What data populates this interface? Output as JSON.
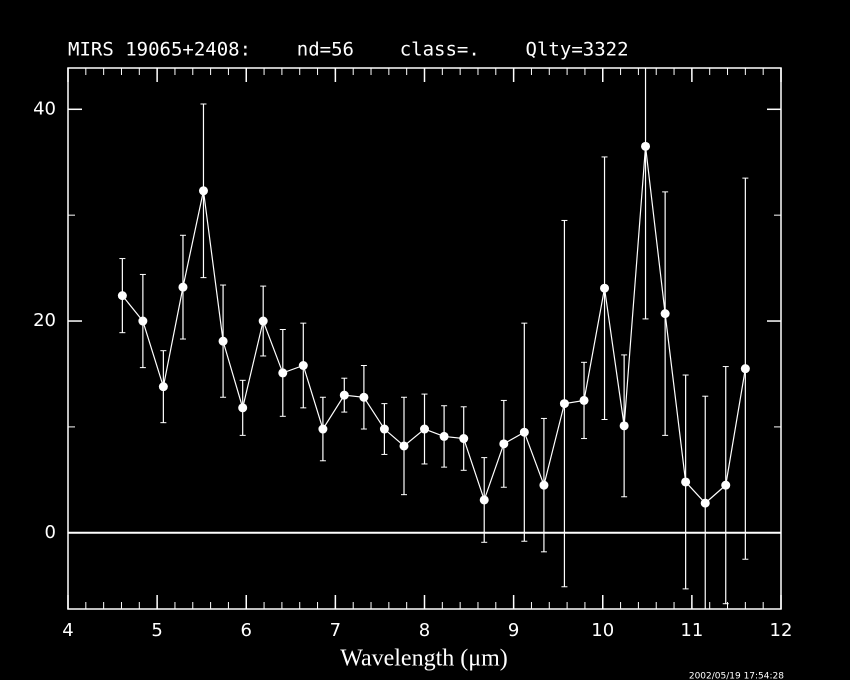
{
  "chart_data": {
    "type": "errorbar-line",
    "title": "MIRS 19065+2408:    nd=56    class=.    Qlty=3322",
    "xlabel": "Wavelength (μm)",
    "timestamp": "2002/05/19 17:54:28",
    "xlim": [
      4,
      12
    ],
    "ylim": [
      -7.2,
      43.9
    ],
    "xticks": [
      4,
      5,
      6,
      7,
      8,
      9,
      10,
      11,
      12
    ],
    "yticks": [
      0,
      20,
      40
    ],
    "yminor": [
      10,
      30
    ],
    "xminor_step": 0.2,
    "hline": 0,
    "color": "#ffffff",
    "series": [
      {
        "x": [
          4.61,
          4.84,
          5.07,
          5.29,
          5.52,
          5.74,
          5.96,
          6.19,
          6.41,
          6.64,
          6.86,
          7.1,
          7.32,
          7.55,
          7.77,
          8.0,
          8.22,
          8.44,
          8.67,
          8.89,
          9.12,
          9.34,
          9.57,
          9.79,
          10.02,
          10.24,
          10.48,
          10.7,
          10.93,
          11.15,
          11.38,
          11.6
        ],
        "values": [
          22.4,
          20.0,
          13.8,
          23.2,
          32.3,
          18.1,
          11.8,
          20.0,
          15.1,
          15.8,
          9.8,
          13.0,
          12.8,
          9.8,
          8.2,
          9.8,
          9.1,
          8.9,
          3.1,
          8.4,
          9.5,
          4.5,
          12.2,
          12.5,
          23.1,
          10.1,
          36.5,
          20.7,
          4.8,
          2.8,
          4.5,
          15.5
        ],
        "errors": [
          3.5,
          4.4,
          3.4,
          4.9,
          8.2,
          5.3,
          2.6,
          3.3,
          4.1,
          4.0,
          3.0,
          1.6,
          3.0,
          2.4,
          4.6,
          3.3,
          2.9,
          3.0,
          4.0,
          4.1,
          10.3,
          6.3,
          17.3,
          3.6,
          12.4,
          6.7,
          16.3,
          11.5,
          10.1,
          10.1,
          11.2,
          18.0
        ]
      }
    ]
  }
}
